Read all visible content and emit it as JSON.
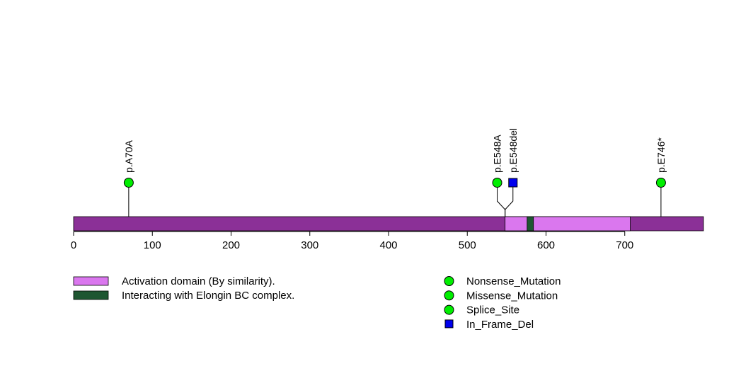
{
  "chart_data": {
    "type": "lollipop",
    "axis": {
      "min": 0,
      "max": 800,
      "ticks": [
        0,
        100,
        200,
        300,
        400,
        500,
        600,
        700
      ]
    },
    "protein_length": 800,
    "backbone_color": "#8B3097",
    "domains": [
      {
        "name": "Activation domain (By similarity).",
        "start": 548,
        "end": 707,
        "color": "#DA77EE"
      },
      {
        "name": "Interacting with Elongin BC complex.",
        "start": 576,
        "end": 584,
        "color": "#1E5631"
      }
    ],
    "mutations": [
      {
        "label": "p.A70A",
        "position": 70,
        "display_position": 70,
        "type": "circle",
        "color": "#00EE00"
      },
      {
        "label": "p.E548A",
        "position": 548,
        "display_position": 538,
        "type": "circle",
        "color": "#00EE00"
      },
      {
        "label": "p.E548del",
        "position": 548,
        "display_position": 558,
        "type": "square",
        "color": "#0000EE"
      },
      {
        "label": "p.E746*",
        "position": 746,
        "display_position": 746,
        "type": "circle",
        "color": "#00EE00"
      }
    ],
    "domain_legend": [
      {
        "label": "Activation domain (By similarity).",
        "color": "#DA77EE"
      },
      {
        "label": "Interacting with Elongin BC complex.",
        "color": "#1E5631"
      }
    ],
    "mutation_legend": [
      {
        "label": "Nonsense_Mutation",
        "shape": "circle",
        "color": "#00EE00"
      },
      {
        "label": "Missense_Mutation",
        "shape": "circle",
        "color": "#00EE00"
      },
      {
        "label": "Splice_Site",
        "shape": "circle",
        "color": "#00EE00"
      },
      {
        "label": "In_Frame_Del",
        "shape": "square",
        "color": "#0000EE"
      }
    ]
  }
}
